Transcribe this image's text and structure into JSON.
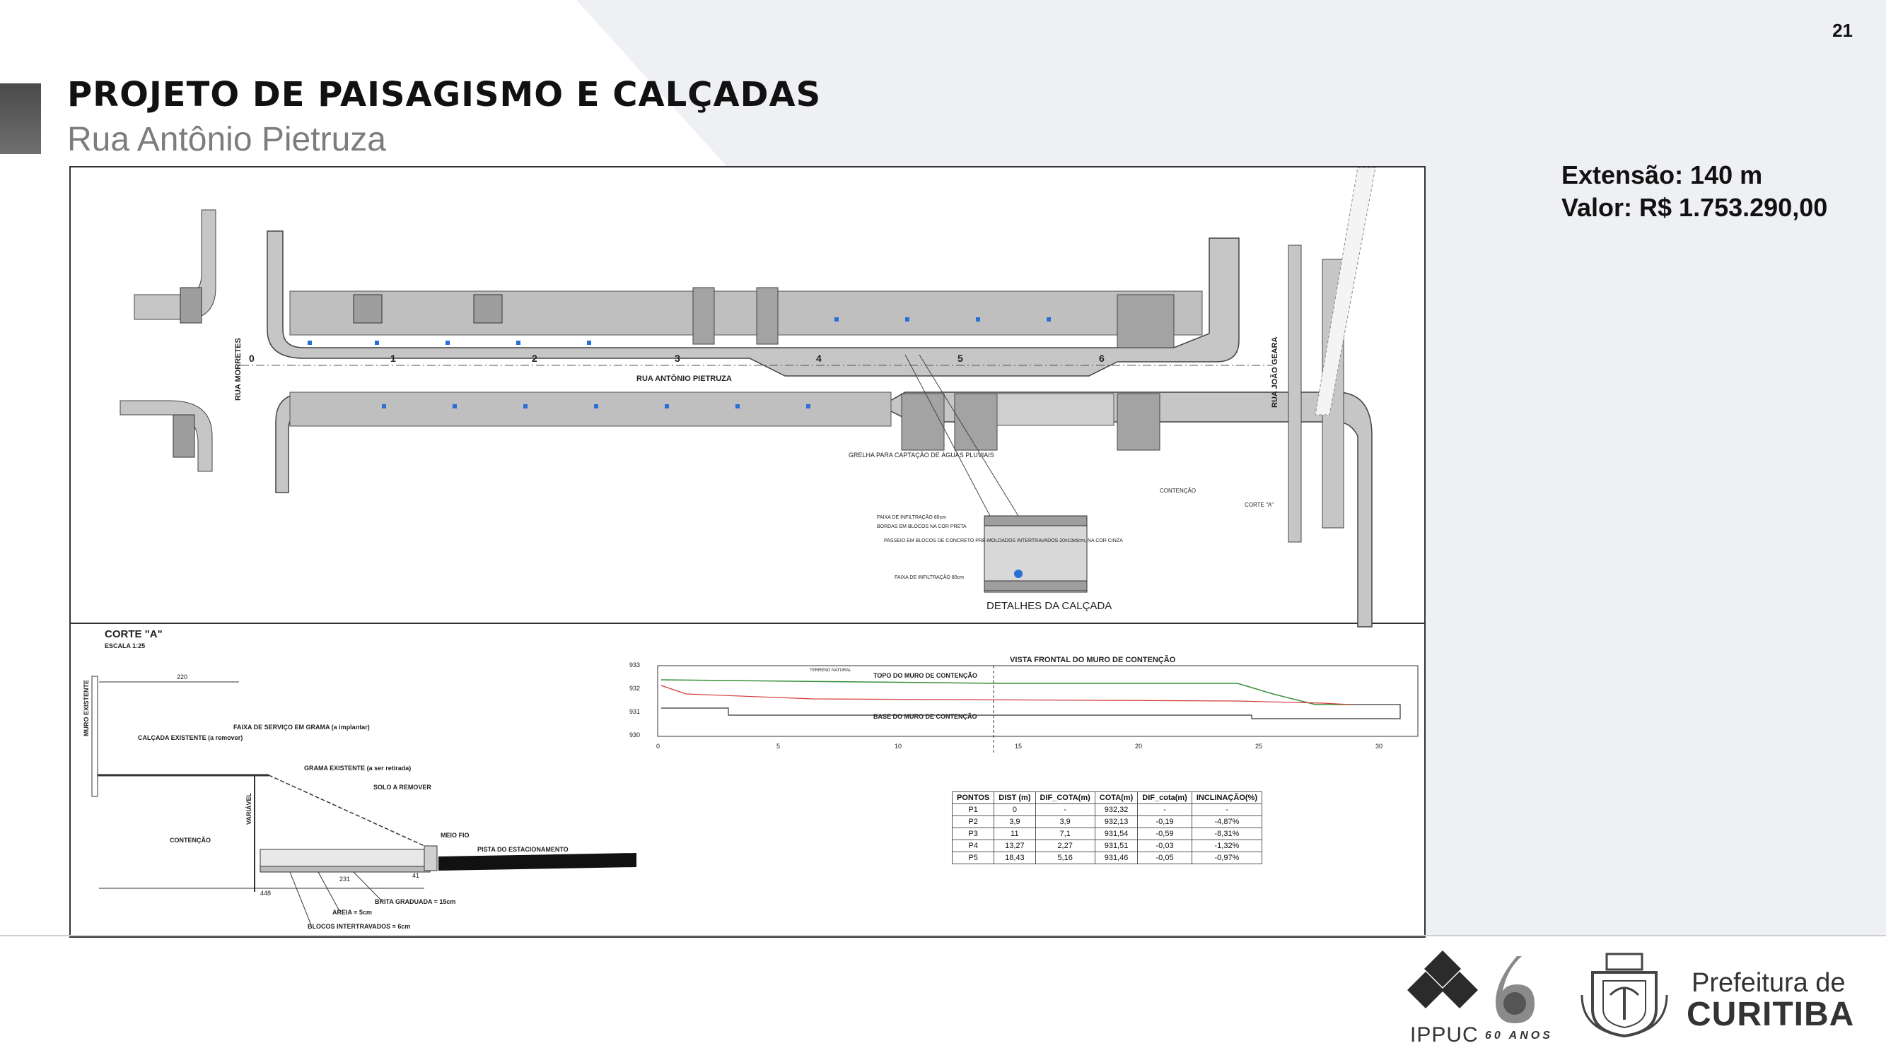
{
  "page_number": "21",
  "header": {
    "title": "PROJETO DE PAISAGISMO E CALÇADAS",
    "subtitle": "Rua Antônio Pietruza"
  },
  "info": {
    "extension": "Extensão: 140 m",
    "value": "Valor: R$ 1.753.290,00"
  },
  "plan": {
    "street_main": "RUA ANTÔNIO PIETRUZA",
    "street_left": "RUA MORRETES",
    "street_right": "RUA JOÃO GEARA",
    "stations": [
      "0",
      "1",
      "2",
      "3",
      "4",
      "5",
      "6"
    ],
    "details_title": "DETALHES DA CALÇADA",
    "details_notes": [
      "FAIXA DE INFILTRAÇÃO 80cm",
      "BORDAS EM BLOCOS NA COR PRETA",
      "PASSEIO EM BLOCOS DE CONCRETO PRÉ-MOLDADOS INTERTRAVADOS 20x10x6cm, NA COR CINZA",
      "FAIXA DE INFILTRAÇÃO 80cm"
    ],
    "label_grelha": "GRELHA PARA CAPTAÇÃO DE ÁGUAS PLUVIAIS",
    "label_contencao": "CONTENÇÃO",
    "label_corte": "CORTE \"A\""
  },
  "section": {
    "title": "CORTE \"A\"",
    "scale": "ESCALA 1:25",
    "labels": {
      "muro": "MURO EXISTENTE",
      "dim_top": "220",
      "faixa": "FAIXA DE SERVIÇO EM GRAMA (a implantar)",
      "calcada": "CALÇADA EXISTENTE (a remover)",
      "grama": "GRAMA EXISTENTE (a ser retirada)",
      "solo": "SOLO A REMOVER",
      "variavel": "VARIÁVEL",
      "contencao": "CONTENÇÃO",
      "meio_fio": "MEIO FIO",
      "pista": "PISTA DO ESTACIONAMENTO",
      "dim_231": "231",
      "dim_448": "448",
      "dim_41": "41",
      "brita": "BRITA GRADUADA = 15cm",
      "areia": "AREIA = 5cm",
      "blocos": "BLOCOS INTERTRAVADOS = 6cm"
    }
  },
  "elevation": {
    "title": "VISTA FRONTAL DO MURO DE CONTENÇÃO",
    "top_label": "TOPO DO MURO DE CONTENÇÃO",
    "base_label": "BASE DO MURO DE CONTENÇÃO",
    "terrain_label": "TERRENO NATURAL",
    "y_ticks": [
      "933",
      "932",
      "931",
      "930"
    ],
    "x_ticks": [
      "0",
      "5",
      "10",
      "15",
      "20",
      "25",
      "30"
    ]
  },
  "table": {
    "headers": [
      "PONTOS",
      "DIST (m)",
      "DIF_COTA(m)",
      "COTA(m)",
      "DIF_cota(m)",
      "INCLINAÇÃO(%)"
    ],
    "rows": [
      [
        "P1",
        "0",
        "-",
        "932,32",
        "-",
        "-"
      ],
      [
        "P2",
        "3,9",
        "3,9",
        "932,13",
        "-0,19",
        "-4,87%"
      ],
      [
        "P3",
        "11",
        "7,1",
        "931,54",
        "-0,59",
        "-8,31%"
      ],
      [
        "P4",
        "13,27",
        "2,27",
        "931,51",
        "-0,03",
        "-1,32%"
      ],
      [
        "P5",
        "18,43",
        "5,16",
        "931,46",
        "-0,05",
        "-0,97%"
      ]
    ]
  },
  "footer": {
    "ippuc": "IPPUC",
    "sixty": "60 ANOS",
    "prefeitura_line1": "Prefeitura de",
    "prefeitura_line2": "CURITIBA"
  },
  "colors": {
    "accent_gray": "#555555",
    "diagonal_bg": "#eeeef2",
    "plan_gray": "#b8b8b8"
  }
}
